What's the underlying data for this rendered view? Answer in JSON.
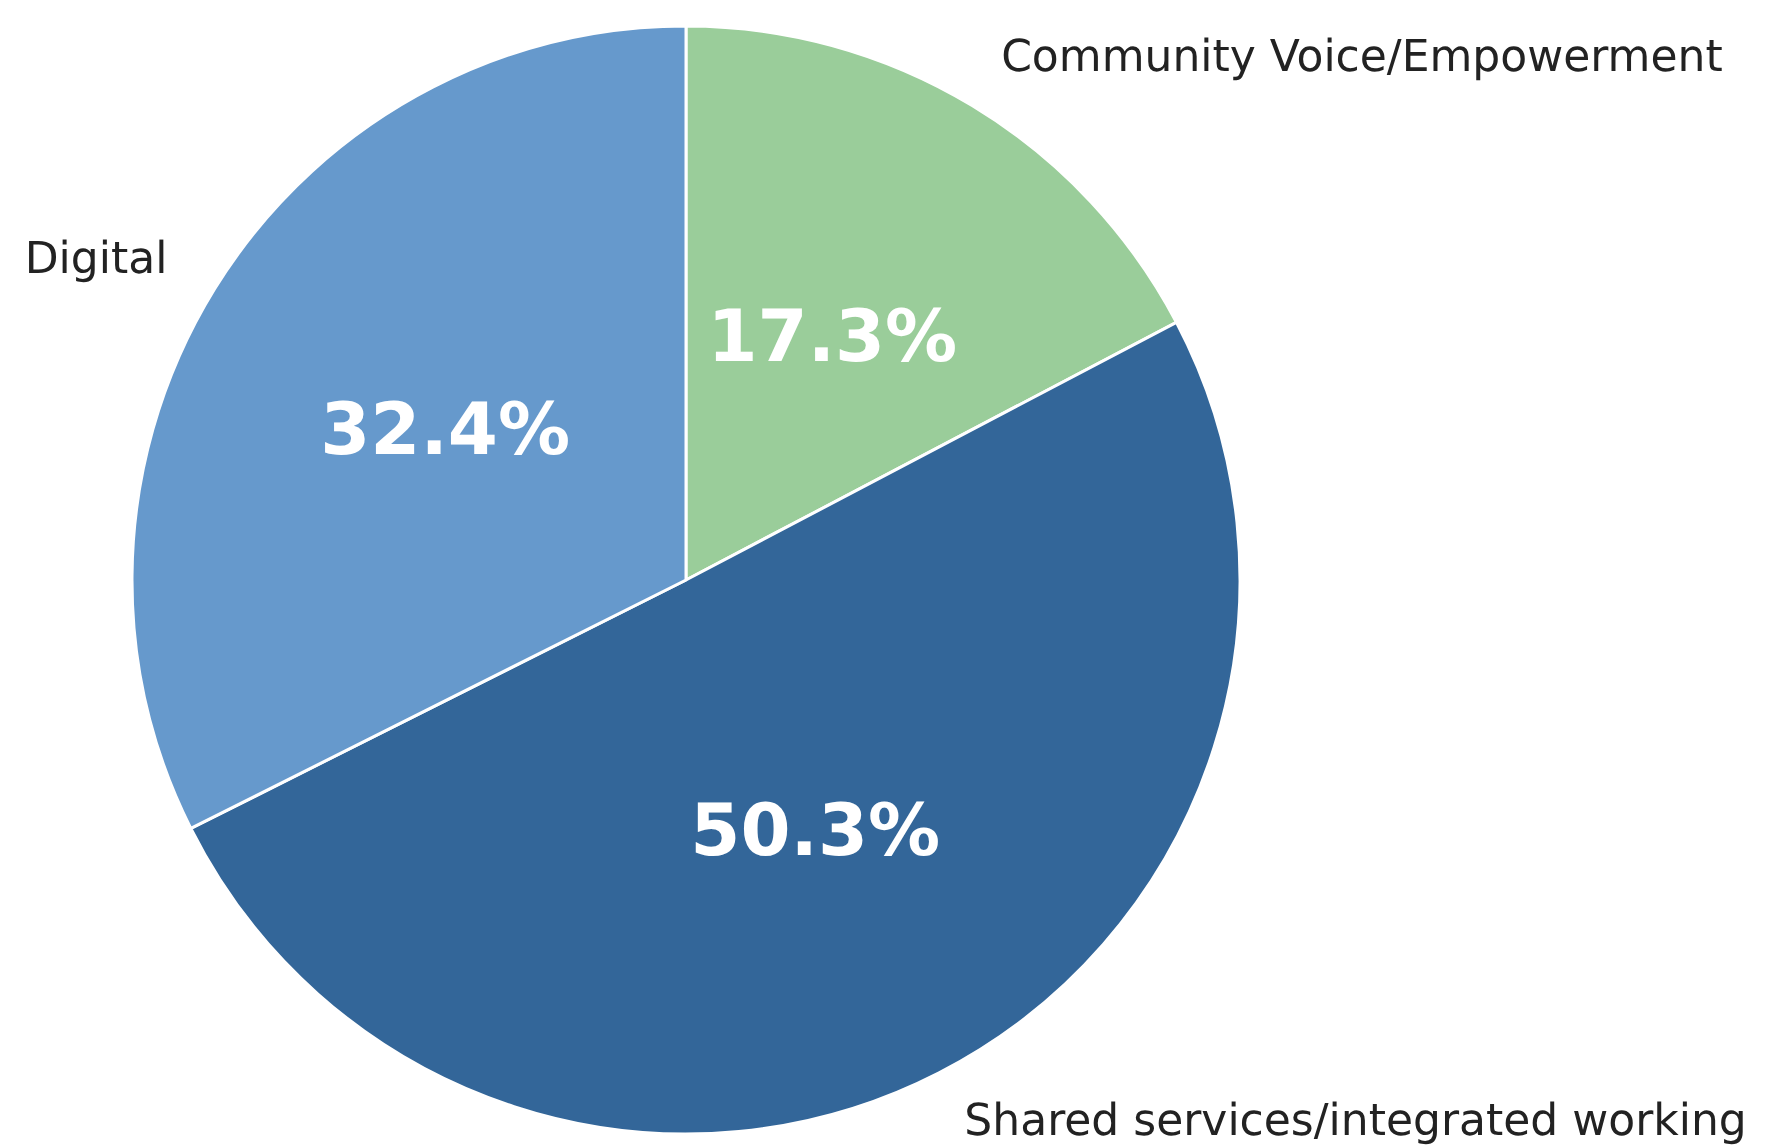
{
  "chart_data": {
    "type": "pie",
    "categories": [
      "Community Voice/Empowerment",
      "Shared services/integrated working",
      "Digital"
    ],
    "values": [
      17.3,
      50.3,
      32.4
    ],
    "colors": [
      "#9acd9a",
      "#336699",
      "#6699cc"
    ],
    "value_labels": [
      "17.3%",
      "50.3%",
      "32.4%"
    ]
  }
}
